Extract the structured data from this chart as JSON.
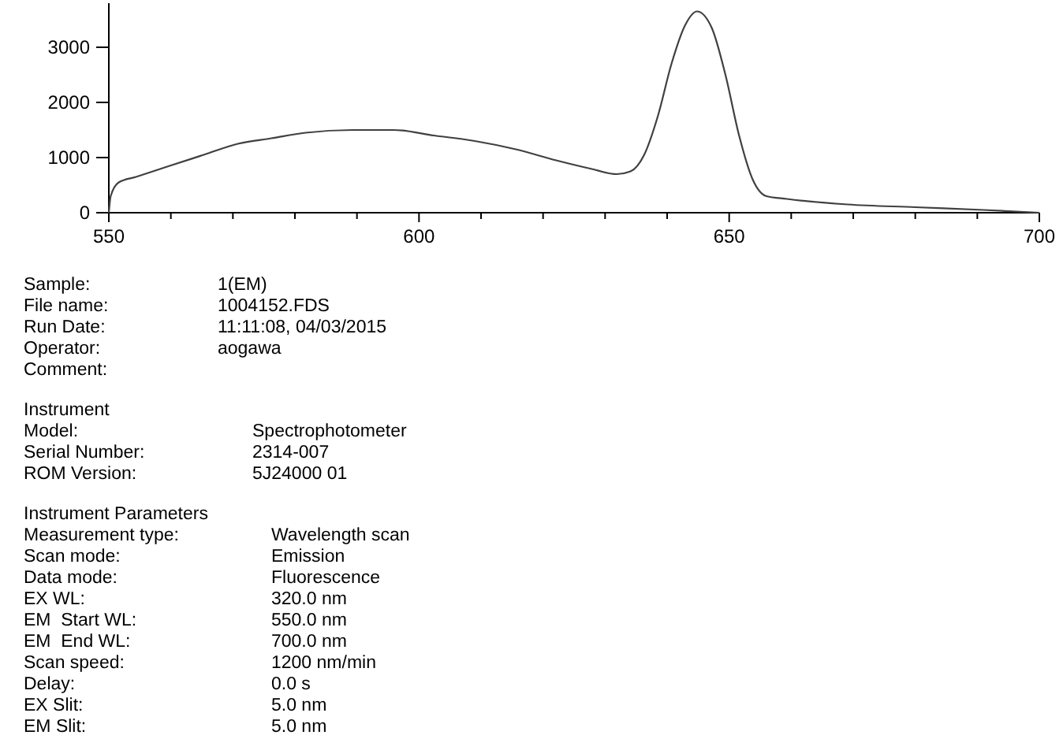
{
  "chart_data": {
    "type": "line",
    "x": [
      550,
      550.3,
      551.6,
      554.4,
      559.8,
      565.3,
      570.8,
      576.2,
      581.7,
      589.3,
      595.9,
      602.4,
      609,
      615.6,
      622.1,
      627.6,
      631.9,
      634.1,
      636.3,
      638.5,
      640.7,
      642.9,
      644.8,
      647.2,
      649.4,
      651.6,
      653.8,
      656,
      659.3,
      669.1,
      680,
      691,
      700
    ],
    "series": [
      {
        "color": "#404040",
        "values": [
          0,
          300,
          550,
          650,
          850,
          1050,
          1250,
          1350,
          1450,
          1500,
          1500,
          1400,
          1300,
          1150,
          950,
          800,
          700,
          750,
          1050,
          1750,
          2700,
          3400,
          3650,
          3350,
          2500,
          1400,
          600,
          300,
          250,
          150,
          100,
          50,
          0
        ]
      }
    ],
    "xlim": [
      550,
      700
    ],
    "ylim": [
      0,
      3800
    ],
    "xticks": [
      550,
      {
        "value": 560,
        "label": null
      },
      {
        "value": 570,
        "label": null
      },
      {
        "value": 580,
        "label": null
      },
      {
        "value": 590,
        "label": null
      },
      600,
      {
        "value": 610,
        "label": null
      },
      {
        "value": 620,
        "label": null
      },
      {
        "value": 630,
        "label": null
      },
      {
        "value": 640,
        "label": null
      },
      650,
      {
        "value": 660,
        "label": null
      },
      {
        "value": 670,
        "label": null
      },
      {
        "value": 680,
        "label": null
      },
      {
        "value": 690,
        "label": null
      },
      700
    ],
    "yticks": [
      0,
      1000,
      2000,
      3000
    ],
    "grid": false,
    "annotations": [
      "Sample:\t1(EM)",
      "File name:\t1004152.FDS",
      "Run Date:\t11:11:08, 04/03/2015",
      "Operator:\taogawa",
      "Comment:\t",
      "Instrument",
      "Model:\tSpectrophotometer",
      "Serial Number:\t2314-007",
      "ROM Version:\t5J24000 01",
      "Instrument Parameters",
      "Measurement type:\tWavelength scan",
      "Scan mode:\tEmission",
      "Data mode:\tFluorescence",
      "EX WL:\t320.0 nm",
      "EM  Start WL:\t550.0 nm",
      "EM  End WL:\t700.0 nm",
      "Scan speed:\t1200 nm/min",
      "Delay:\t0.0 s",
      "EX Slit:\t5.0 nm",
      "EM Slit:\t5.0 nm"
    ]
  }
}
